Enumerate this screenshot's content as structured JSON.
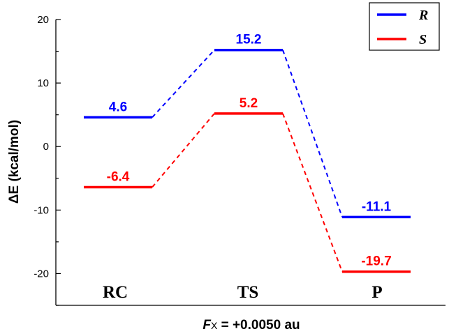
{
  "chart_data": {
    "type": "line",
    "categories": [
      "RC",
      "TS",
      "P"
    ],
    "series": [
      {
        "name": "R",
        "color": "#0000ff",
        "values": [
          4.6,
          15.2,
          -11.1
        ],
        "labels": [
          "4.6",
          "15.2",
          "-11.1"
        ]
      },
      {
        "name": "S",
        "color": "#ff0000",
        "values": [
          -6.4,
          5.2,
          -19.7
        ],
        "labels": [
          "-6.4",
          "5.2",
          "-19.7"
        ]
      }
    ],
    "ylabel": "ΔE (kcal/mol)",
    "xlabel_italic": "F",
    "xlabel_sub": "X",
    "xlabel_rest": " = +0.0050 au",
    "ylim": [
      -25,
      20
    ],
    "yticks": [
      -20,
      -10,
      0,
      10,
      20
    ],
    "ytick_labels": [
      "-20",
      "-10",
      "0",
      "10",
      "20"
    ],
    "legend_position": "top-right",
    "style": "energy-level diagram with solid level bars and dashed connectors"
  }
}
